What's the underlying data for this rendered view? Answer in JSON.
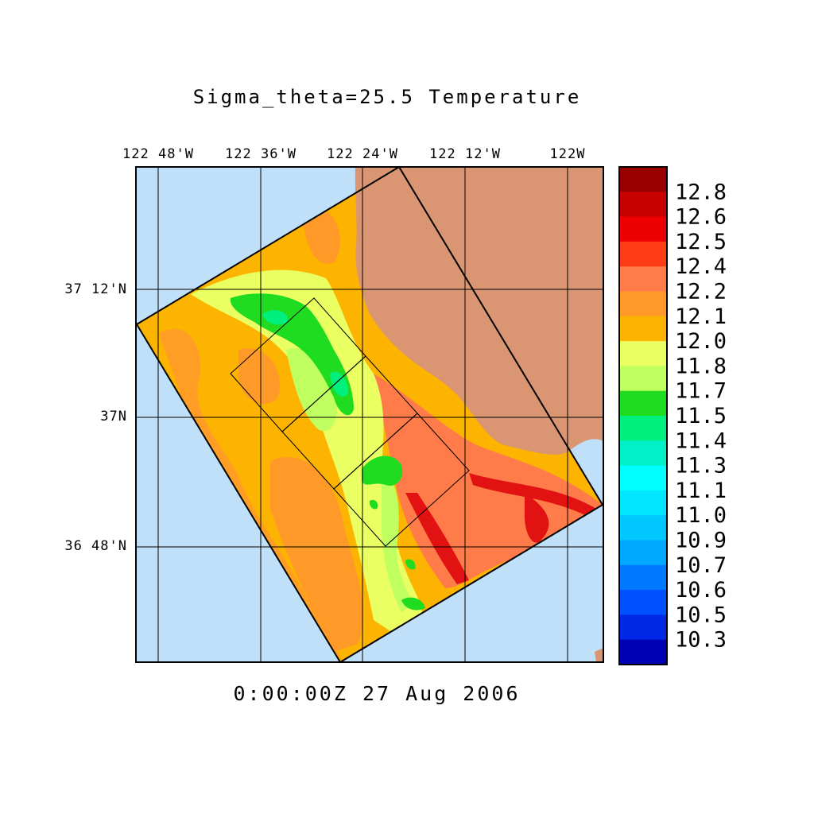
{
  "title": "Sigma_theta=25.5 Temperature",
  "timestamp": "0:00:00Z  27 Aug 2006",
  "map": {
    "lon_labels": [
      "122 48'W",
      "122 36'W",
      "122 24'W",
      "122 12'W",
      "122W"
    ],
    "lat_labels": [
      "37 12'N",
      "37N",
      "36 48'N"
    ],
    "colors": {
      "ocean": "#c0e0fa",
      "land": "#da9572",
      "domain_fill": "#fcb400",
      "warm_band": "#ff7b4a",
      "hot": "#e21212",
      "cool_yellow": "#eaff62",
      "green_light": "#bfff60",
      "green": "#20dc20",
      "teal": "#00f080"
    }
  },
  "colorbar": {
    "labels": [
      "12.8",
      "12.6",
      "12.5",
      "12.4",
      "12.2",
      "12.1",
      "12.0",
      "11.8",
      "11.7",
      "11.5",
      "11.4",
      "11.3",
      "11.1",
      "11.0",
      "10.9",
      "10.7",
      "10.6",
      "10.5",
      "10.3"
    ],
    "colors": [
      "#9a0000",
      "#c80000",
      "#ee0000",
      "#ff3c14",
      "#ff7b4a",
      "#ff9a28",
      "#fcb400",
      "#eaff62",
      "#bfff60",
      "#20dc20",
      "#00f080",
      "#00f0c8",
      "#00ffff",
      "#00e6ff",
      "#00c8ff",
      "#00a8ff",
      "#0078ff",
      "#0050ff",
      "#0028e6",
      "#0000b4"
    ]
  }
}
